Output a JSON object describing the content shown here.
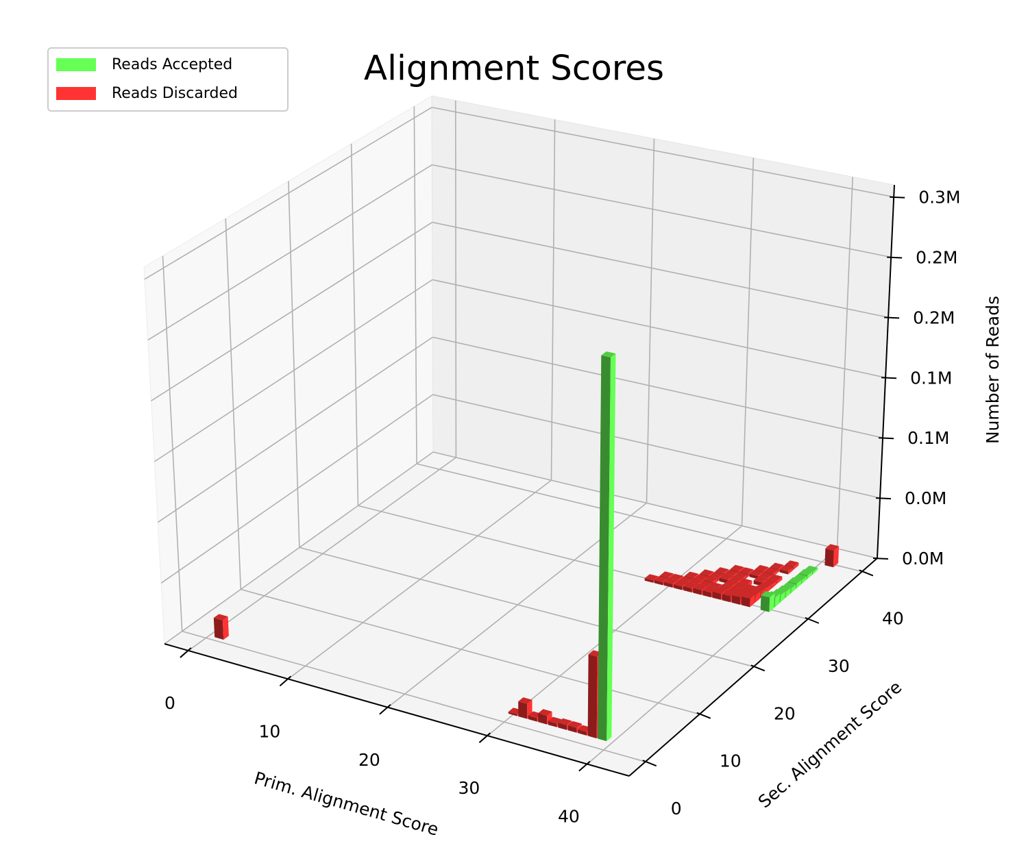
{
  "chart_data": {
    "type": "bar3d",
    "title": "Alignment Scores",
    "xlabel": "Prim. Alignment Score",
    "ylabel": "Sec. Alignment Score",
    "zlabel": "Number of Reads",
    "xlim": [
      -2.4,
      44.2
    ],
    "ylim": [
      -3.0,
      42.8
    ],
    "zlim": [
      0,
      310000
    ],
    "xticks": [
      0,
      10,
      20,
      30,
      40
    ],
    "yticks": [
      0,
      10,
      20,
      30,
      40
    ],
    "zticks": [
      {
        "value": 0,
        "label": "0.0M"
      },
      {
        "value": 50000,
        "label": "0.0M"
      },
      {
        "value": 100000,
        "label": "0.1M"
      },
      {
        "value": 150000,
        "label": "0.1M"
      },
      {
        "value": 200000,
        "label": "0.2M"
      },
      {
        "value": 250000,
        "label": "0.2M"
      },
      {
        "value": 300000,
        "label": "0.3M"
      }
    ],
    "grid": true,
    "legend": "upper left",
    "series": [
      {
        "name": "Reads Accepted",
        "color": "#66ff55",
        "x": [
          39,
          40,
          40,
          40,
          40,
          40,
          40,
          40,
          40,
          40
        ],
        "y": [
          2,
          30,
          31,
          32,
          33,
          34,
          35,
          36,
          37,
          38
        ],
        "values": [
          305000,
          12000,
          8000,
          6000,
          5000,
          4000,
          4000,
          3000,
          3000,
          2000
        ]
      },
      {
        "name": "Reads Discarded",
        "color": "#ff3333",
        "x": [
          1,
          30,
          31,
          32,
          33,
          34,
          35,
          36,
          37,
          38,
          41,
          28,
          29,
          29,
          30,
          30,
          31,
          31,
          31,
          32,
          32,
          32,
          32,
          33,
          33,
          33,
          33,
          33,
          34,
          34,
          34,
          34,
          34,
          35,
          35,
          35,
          35,
          35,
          35,
          36,
          36,
          36,
          36,
          36,
          36,
          37,
          37,
          37,
          37,
          37,
          37,
          37,
          38,
          38,
          38,
          38,
          38,
          38,
          38,
          38
        ],
        "y": [
          1,
          2,
          2,
          2,
          2,
          2,
          2,
          2,
          2,
          2,
          40,
          30,
          30,
          31,
          30,
          31,
          30,
          31,
          32,
          30,
          31,
          32,
          33,
          30,
          31,
          32,
          33,
          34,
          30,
          31,
          33,
          34,
          35,
          30,
          31,
          32,
          33,
          34,
          35,
          30,
          31,
          32,
          33,
          35,
          36,
          30,
          31,
          32,
          34,
          35,
          36,
          37,
          30,
          31,
          32,
          33,
          34,
          35,
          37,
          38
        ],
        "values": [
          16000,
          1500,
          12000,
          3000,
          7000,
          3000,
          4000,
          4000,
          3000,
          65000,
          14000,
          2000,
          2500,
          2500,
          3000,
          2500,
          3000,
          2500,
          2500,
          3500,
          3000,
          2500,
          2500,
          4000,
          3000,
          3000,
          2500,
          2500,
          4000,
          3500,
          3000,
          2500,
          2500,
          5000,
          4000,
          3500,
          3000,
          2500,
          2500,
          5000,
          4000,
          3500,
          3000,
          2500,
          2500,
          6000,
          5000,
          4000,
          3000,
          2500,
          2500,
          2500,
          7000,
          6000,
          5000,
          4000,
          3000,
          2500,
          2500,
          2500
        ]
      }
    ]
  }
}
